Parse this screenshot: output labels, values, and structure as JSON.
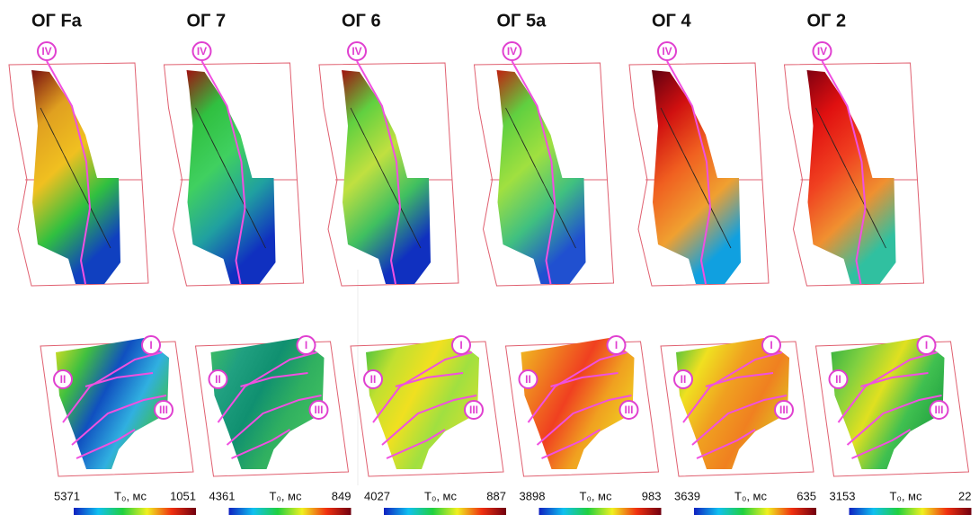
{
  "panels": [
    {
      "title": "ОГ Fa",
      "top_marker": "IV",
      "bottom_markers": [
        "I",
        "II",
        "III"
      ],
      "colorbar": {
        "min_label": "5371",
        "unit": "T₀, мс",
        "max_label": "1051"
      }
    },
    {
      "title": "ОГ 7",
      "top_marker": "IV",
      "bottom_markers": [
        "I",
        "II",
        "III"
      ],
      "colorbar": {
        "min_label": "4361",
        "unit": "T₀, мс",
        "max_label": "849"
      }
    },
    {
      "title": "ОГ 6",
      "top_marker": "IV",
      "bottom_markers": [
        "I",
        "II",
        "III"
      ],
      "colorbar": {
        "min_label": "4027",
        "unit": "T₀, мс",
        "max_label": "887"
      }
    },
    {
      "title": "ОГ 5а",
      "top_marker": "IV",
      "bottom_markers": [
        "I",
        "II",
        "III"
      ],
      "colorbar": {
        "min_label": "3898",
        "unit": "T₀, мс",
        "max_label": "983"
      }
    },
    {
      "title": "ОГ 4",
      "top_marker": "IV",
      "bottom_markers": [
        "I",
        "II",
        "III"
      ],
      "colorbar": {
        "min_label": "3639",
        "unit": "T₀, мс",
        "max_label": "635"
      }
    },
    {
      "title": "ОГ 2",
      "top_marker": "IV",
      "bottom_markers": [
        "I",
        "II",
        "III"
      ],
      "colorbar": {
        "min_label": "3153",
        "unit": "T₀, мс",
        "max_label": "22"
      }
    }
  ]
}
